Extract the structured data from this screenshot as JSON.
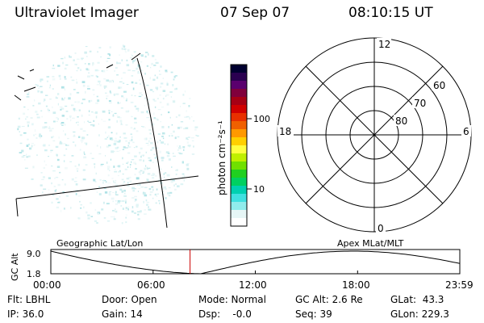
{
  "header": {
    "instrument": "Ultraviolet Imager",
    "date": "07 Sep 07",
    "time": "08:10:15 UT"
  },
  "colorbar": {
    "unit_label": "photon cm⁻²s⁻¹",
    "ticks": [
      "100",
      "10"
    ],
    "colors": [
      "#000030",
      "#2a0050",
      "#5a006e",
      "#80003c",
      "#a60014",
      "#d00000",
      "#e83000",
      "#f06000",
      "#ff9900",
      "#ffd000",
      "#ffff40",
      "#c0f000",
      "#70e000",
      "#20d020",
      "#00d060",
      "#00d0b0",
      "#40e0e0",
      "#90ecec",
      "#e6f6f6",
      "#ffffff"
    ]
  },
  "polar": {
    "mlt_labels": {
      "top": "12",
      "left": "18",
      "right": "6",
      "bottom": "0"
    },
    "lat_labels": [
      "60",
      "70",
      "80"
    ]
  },
  "altitude_plot": {
    "left_label": "Geographic Lat/Lon",
    "right_label": "Apex MLat/MLT",
    "y_axis_label": "GC Alt",
    "y_ticks": [
      "9.0",
      "1.8"
    ],
    "x_ticks": [
      "00:00",
      "06:00",
      "12:00",
      "18:00",
      "23:59"
    ],
    "current_time_marker_hours": 8.17,
    "marker_color": "#cc0000"
  },
  "status": {
    "flt": "Flt: LBHL",
    "ip": "IP: 36.0",
    "door": "Door: Open",
    "gain": "Gain: 14",
    "mode": "Mode: Normal",
    "dsp": "Dsp:    -0.0",
    "gc_alt": "GC Alt: 2.6 Re",
    "seq": "Seq: 39",
    "glat": "GLat:  43.3",
    "glon": "GLon: 229.3"
  }
}
